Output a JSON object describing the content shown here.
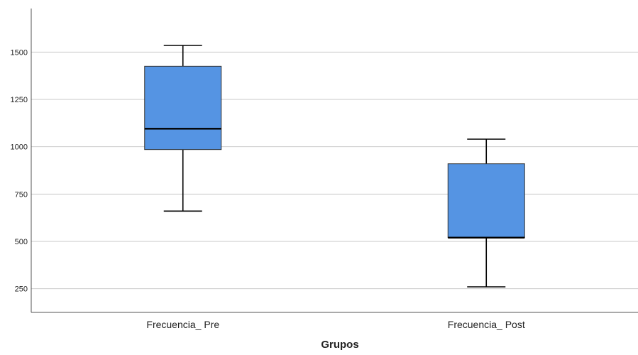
{
  "chart_data": {
    "type": "boxplot",
    "title": "",
    "xlabel": "Grupos",
    "ylabel": "",
    "ylim": [
      125,
      1730
    ],
    "yticks": [
      250,
      500,
      750,
      1000,
      1250,
      1500
    ],
    "grid": true,
    "categories": [
      "Frecuencia_ Pre",
      "Frecuencia_ Post"
    ],
    "boxes": [
      {
        "category": "Frecuencia_ Pre",
        "min": 660,
        "q1": 985,
        "median": 1095,
        "q3": 1425,
        "max": 1535
      },
      {
        "category": "Frecuencia_ Post",
        "min": 260,
        "q1": 520,
        "median": 520,
        "q3": 910,
        "max": 1040
      }
    ],
    "box_color": "#5594e3",
    "line_color": "#000000",
    "grid_color": "#c8c8c8",
    "axis_color": "#555555"
  }
}
